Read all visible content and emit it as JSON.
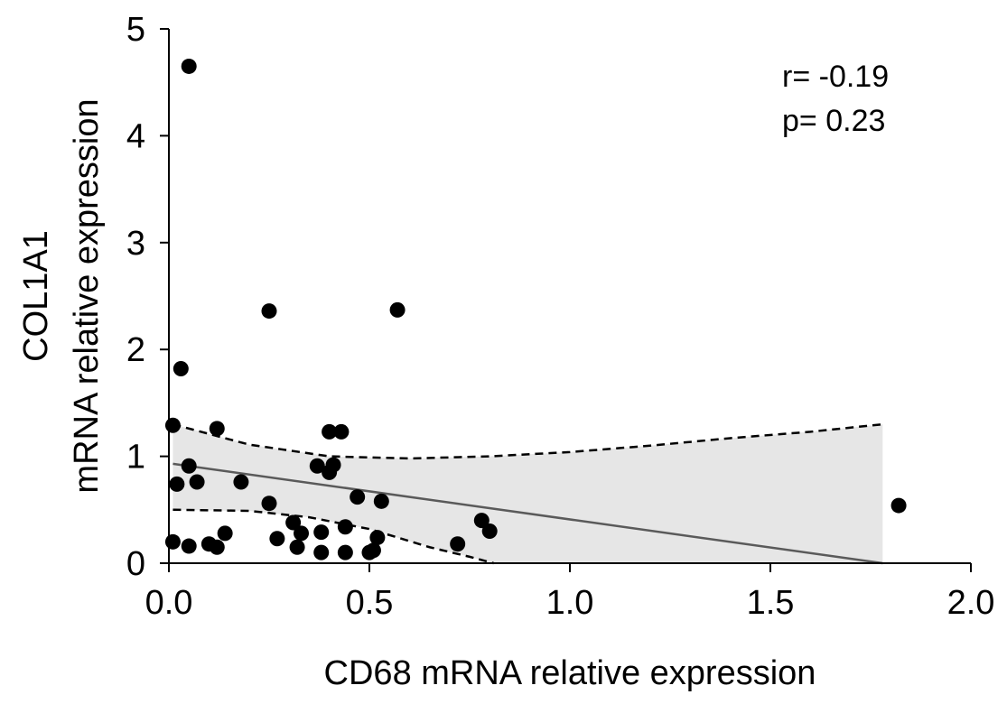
{
  "chart_data": {
    "type": "scatter",
    "xlabel": "CD68 mRNA  relative expression",
    "ylabel_lines": [
      "COL1A1",
      "mRNA relative expression"
    ],
    "xlim": [
      0,
      2.0
    ],
    "ylim": [
      0,
      5
    ],
    "x_ticks": [
      0.0,
      0.5,
      1.0,
      1.5,
      2.0
    ],
    "x_tick_labels": [
      "0.0",
      "0.5",
      "1.0",
      "1.5",
      "2.0"
    ],
    "y_ticks": [
      0,
      1,
      2,
      3,
      4,
      5
    ],
    "y_tick_labels": [
      "0",
      "1",
      "2",
      "3",
      "4",
      "5"
    ],
    "grid": false,
    "annotations": [
      "r= -0.19",
      "p= 0.23"
    ],
    "points": [
      {
        "x": 0.05,
        "y": 4.65
      },
      {
        "x": 0.03,
        "y": 1.82
      },
      {
        "x": 0.01,
        "y": 1.29
      },
      {
        "x": 0.12,
        "y": 1.26
      },
      {
        "x": 0.05,
        "y": 0.91
      },
      {
        "x": 0.02,
        "y": 0.74
      },
      {
        "x": 0.07,
        "y": 0.76
      },
      {
        "x": 0.18,
        "y": 0.76
      },
      {
        "x": 0.01,
        "y": 0.2
      },
      {
        "x": 0.05,
        "y": 0.16
      },
      {
        "x": 0.1,
        "y": 0.18
      },
      {
        "x": 0.12,
        "y": 0.15
      },
      {
        "x": 0.14,
        "y": 0.28
      },
      {
        "x": 0.25,
        "y": 2.36
      },
      {
        "x": 0.25,
        "y": 0.56
      },
      {
        "x": 0.27,
        "y": 0.23
      },
      {
        "x": 0.31,
        "y": 0.38
      },
      {
        "x": 0.32,
        "y": 0.15
      },
      {
        "x": 0.33,
        "y": 0.28
      },
      {
        "x": 0.37,
        "y": 0.91
      },
      {
        "x": 0.38,
        "y": 0.1
      },
      {
        "x": 0.38,
        "y": 0.29
      },
      {
        "x": 0.4,
        "y": 1.23
      },
      {
        "x": 0.4,
        "y": 0.85
      },
      {
        "x": 0.41,
        "y": 0.92
      },
      {
        "x": 0.43,
        "y": 1.23
      },
      {
        "x": 0.44,
        "y": 0.34
      },
      {
        "x": 0.44,
        "y": 0.1
      },
      {
        "x": 0.47,
        "y": 0.62
      },
      {
        "x": 0.5,
        "y": 0.1
      },
      {
        "x": 0.51,
        "y": 0.12
      },
      {
        "x": 0.52,
        "y": 0.24
      },
      {
        "x": 0.53,
        "y": 0.58
      },
      {
        "x": 0.57,
        "y": 2.37
      },
      {
        "x": 0.72,
        "y": 0.18
      },
      {
        "x": 0.78,
        "y": 0.4
      },
      {
        "x": 0.8,
        "y": 0.3
      },
      {
        "x": 1.82,
        "y": 0.54
      }
    ],
    "regression_line": {
      "x": [
        0.01,
        1.78
      ],
      "y": [
        0.93,
        0.0
      ]
    },
    "ci_upper": {
      "x": [
        0.01,
        0.2,
        0.4,
        0.6,
        0.8,
        1.0,
        1.2,
        1.4,
        1.6,
        1.78
      ],
      "y": [
        1.3,
        1.11,
        1.0,
        0.98,
        1.0,
        1.04,
        1.1,
        1.17,
        1.23,
        1.3
      ]
    },
    "ci_lower": {
      "x": [
        0.01,
        0.2,
        0.35,
        0.5,
        0.65,
        0.75,
        0.81
      ],
      "y": [
        0.5,
        0.49,
        0.43,
        0.32,
        0.15,
        0.06,
        0.0
      ]
    },
    "ci_fill_color": "#e6e6e6",
    "point_color": "#000000",
    "line_color": "#5a5a5a"
  }
}
